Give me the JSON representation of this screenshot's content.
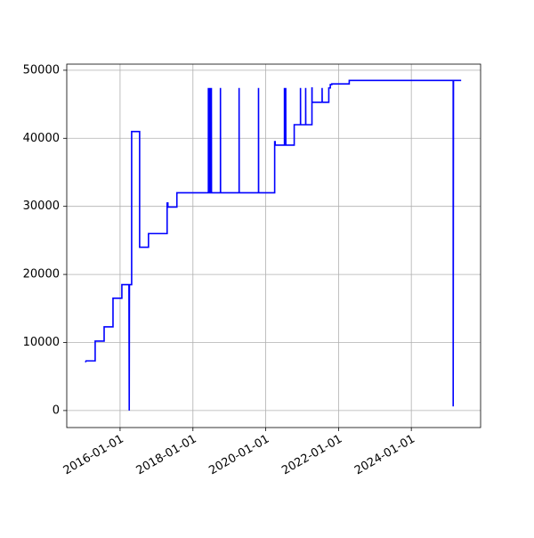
{
  "chart_data": {
    "type": "line",
    "color": "#0000ff",
    "grid": true,
    "x": [
      "2015-01-18",
      "2015-01-25",
      "2015-04-26",
      "2015-04-26",
      "2015-07-25",
      "2015-07-25",
      "2015-10-22",
      "2015-10-22",
      "2016-01-19",
      "2016-01-19",
      "2016-03-30",
      "2016-04-02",
      "2016-04-04",
      "2016-04-26",
      "2016-04-26",
      "2016-07-15",
      "2016-07-15",
      "2016-10-12",
      "2016-10-12",
      "2017-04-17",
      "2017-04-17",
      "2017-04-25",
      "2017-04-25",
      "2017-07-24",
      "2017-07-24",
      "2018-06-05",
      "2018-06-05",
      "2018-06-06",
      "2018-06-15",
      "2018-06-15",
      "2018-06-16",
      "2018-06-25",
      "2018-06-25",
      "2018-06-26",
      "2018-07-05",
      "2018-07-05",
      "2018-07-06",
      "2018-10-04",
      "2018-10-04",
      "2018-10-05",
      "2019-04-09",
      "2019-04-09",
      "2019-04-10",
      "2019-10-21",
      "2019-10-21",
      "2019-10-22",
      "2020-03-31",
      "2020-03-31",
      "2020-04-05",
      "2020-04-05",
      "2020-07-07",
      "2020-07-07",
      "2020-07-08",
      "2020-07-20",
      "2020-07-20",
      "2020-07-21",
      "2020-10-13",
      "2020-10-13",
      "2020-12-15",
      "2020-12-15",
      "2020-12-16",
      "2021-02-05",
      "2021-02-05",
      "2021-02-06",
      "2021-04-09",
      "2021-04-09",
      "2021-04-10",
      "2021-04-10",
      "2021-07-20",
      "2021-07-20",
      "2021-07-21",
      "2021-09-25",
      "2021-09-25",
      "2021-10-10",
      "2021-10-10",
      "2021-10-25",
      "2021-10-25",
      "2022-04-18",
      "2022-04-18",
      "2025-02-24",
      "2025-02-24",
      "2025-02-27",
      "2025-05-15"
    ],
    "values": [
      7100,
      7300,
      7300,
      10200,
      10200,
      12300,
      12300,
      16500,
      16500,
      18500,
      18500,
      0,
      18500,
      18500,
      41000,
      41000,
      24000,
      24000,
      26000,
      26000,
      30500,
      30500,
      29900,
      29900,
      32000,
      32000,
      47400,
      32000,
      32000,
      47400,
      32000,
      32000,
      47400,
      32000,
      32000,
      47400,
      32000,
      32000,
      47400,
      32000,
      32000,
      47400,
      32000,
      32000,
      47400,
      32000,
      32000,
      39500,
      39500,
      39000,
      39000,
      47400,
      39000,
      39000,
      47400,
      39000,
      39000,
      42000,
      42000,
      47400,
      42000,
      42000,
      47400,
      42000,
      42000,
      47400,
      47400,
      45300,
      45300,
      47400,
      45300,
      45300,
      47400,
      47400,
      47900,
      47900,
      48000,
      48000,
      48500,
      48500,
      600,
      48500,
      48500
    ],
    "xlim": [
      "2014-07-15",
      "2025-11-26"
    ],
    "xticks": [
      "2016-01-01",
      "2018-01-01",
      "2020-01-01",
      "2022-01-01",
      "2024-01-01"
    ],
    "ylim": [
      -2500,
      50900
    ],
    "yticks": [
      0,
      10000,
      20000,
      30000,
      40000,
      50000
    ]
  }
}
